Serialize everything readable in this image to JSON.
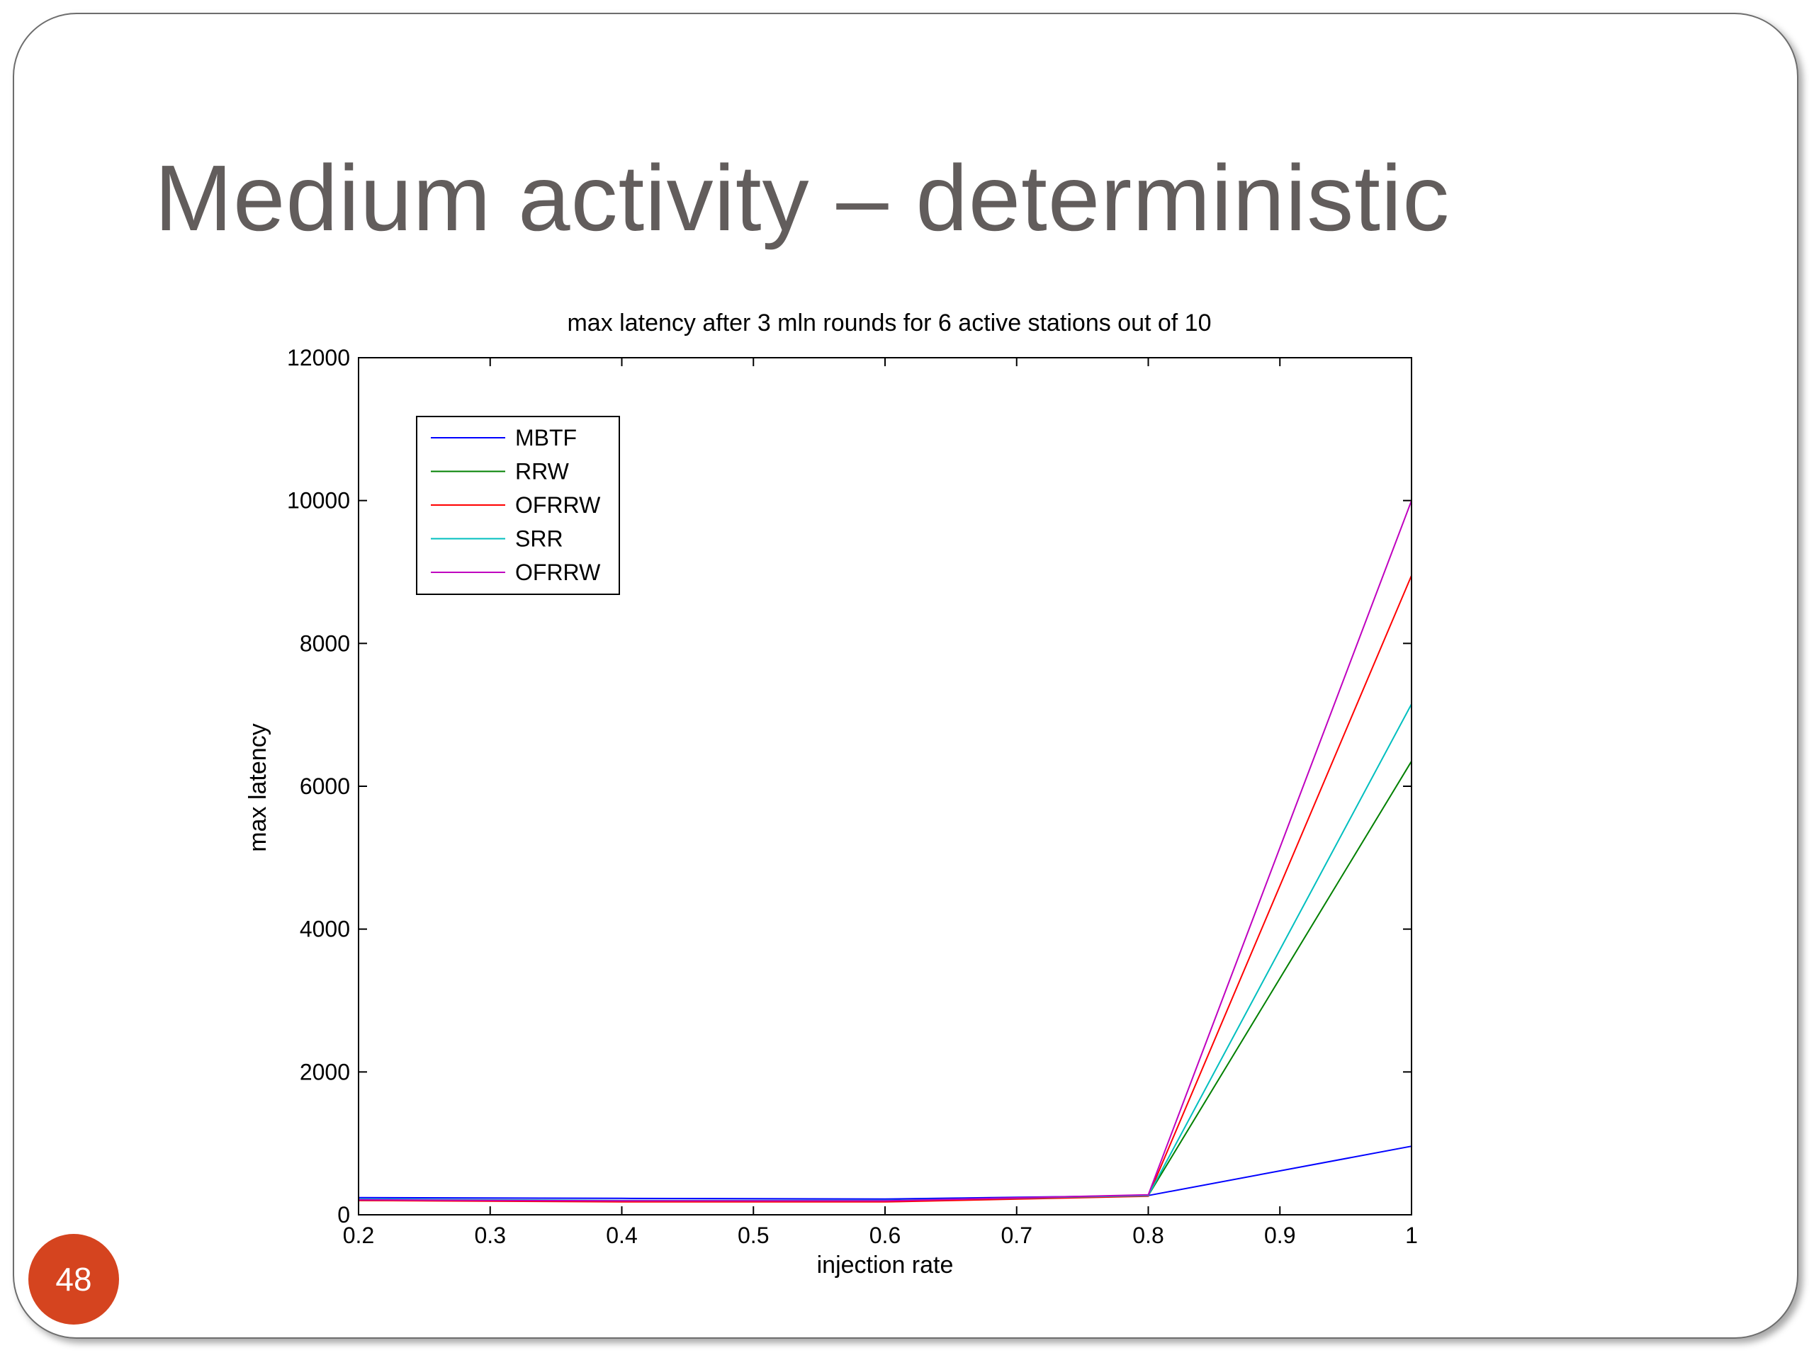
{
  "slide": {
    "title": "Medium activity – deterministic",
    "number": "48",
    "colors": {
      "title": "#625d5c",
      "badge": "#d5441f",
      "border": "#6d6d6d"
    }
  },
  "chart_data": {
    "type": "line",
    "title": "max latency after 3 mln rounds for 6 active stations out of 10",
    "xlabel": "injection rate",
    "ylabel": "max latency",
    "xlim": [
      0.2,
      1
    ],
    "ylim": [
      0,
      12000
    ],
    "xticks": [
      0.2,
      0.3,
      0.4,
      0.5,
      0.6,
      0.7,
      0.8,
      0.9,
      1
    ],
    "xtick_labels": [
      "0.2",
      "0.3",
      "0.4",
      "0.5",
      "0.6",
      "0.7",
      "0.8",
      "0.9",
      "1"
    ],
    "yticks": [
      0,
      2000,
      4000,
      6000,
      8000,
      10000,
      12000
    ],
    "ytick_labels": [
      "0",
      "2000",
      "4000",
      "6000",
      "8000",
      "10000",
      "12000"
    ],
    "grid": false,
    "legend_position": "top-left",
    "x": [
      0.2,
      0.4,
      0.6,
      0.8,
      1
    ],
    "series": [
      {
        "name": "MBTF",
        "color": "#0000ff",
        "values": [
          240,
          230,
          220,
          270,
          960
        ]
      },
      {
        "name": "RRW",
        "color": "#008000",
        "values": [
          200,
          190,
          190,
          270,
          6350
        ]
      },
      {
        "name": "OFRRW",
        "color": "#ff0000",
        "values": [
          200,
          180,
          180,
          260,
          8950
        ]
      },
      {
        "name": "SRR",
        "color": "#00bfbf",
        "values": [
          220,
          200,
          200,
          270,
          7150
        ]
      },
      {
        "name": "OFRRW",
        "color": "#bf00bf",
        "values": [
          210,
          195,
          195,
          280,
          10000
        ]
      }
    ]
  }
}
